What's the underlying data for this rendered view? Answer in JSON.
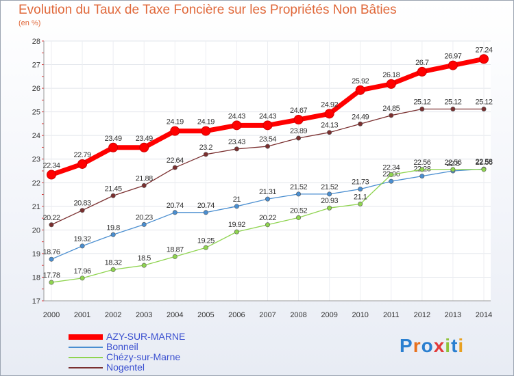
{
  "chart_data": {
    "type": "line",
    "title": "Evolution du Taux de Taxe Foncière sur les Propriétés Non Bâties",
    "ylabel": "(en %)",
    "xlabel": "",
    "ylim": [
      17,
      28
    ],
    "yticks": [
      "17",
      "18",
      "19",
      "20",
      "21",
      "22",
      "23",
      "24",
      "25",
      "26",
      "27",
      "28"
    ],
    "categories": [
      "2000",
      "2001",
      "2002",
      "2003",
      "2004",
      "2005",
      "2006",
      "2007",
      "2008",
      "2009",
      "2010",
      "2011",
      "2012",
      "2013",
      "2014"
    ],
    "series": [
      {
        "name": "Nogentel",
        "color": "#7a2f2f",
        "values": [
          20.22,
          20.83,
          21.45,
          21.88,
          22.64,
          23.2,
          23.43,
          23.54,
          23.89,
          24.13,
          24.49,
          24.85,
          25.12,
          25.12,
          25.12
        ],
        "labels": [
          "20.22",
          "20.83",
          "21.45",
          "21.88",
          "22.64",
          "23.2",
          "23.43",
          "23.54",
          "23.89",
          "24.13",
          "24.49",
          "24.85",
          "25.12",
          "25.12",
          "25.12"
        ]
      },
      {
        "name": "Bonneil",
        "color": "#4a8ed0",
        "values": [
          18.76,
          19.32,
          19.8,
          20.23,
          20.74,
          20.74,
          21,
          21.31,
          21.52,
          21.52,
          21.73,
          22.06,
          22.28,
          22.5,
          22.58
        ],
        "labels": [
          "18.76",
          "19.32",
          "19.8",
          "20.23",
          "20.74",
          "20.74",
          "21",
          "21.31",
          "21.52",
          "21.52",
          "21.73",
          "22.06",
          "22.28",
          "22.5",
          "22.58"
        ]
      },
      {
        "name": "Chézy-sur-Marne",
        "color": "#8fd450",
        "values": [
          17.78,
          17.96,
          18.32,
          18.5,
          18.87,
          19.25,
          19.92,
          20.22,
          20.52,
          20.93,
          21.1,
          22.34,
          22.56,
          22.56,
          22.56
        ],
        "labels": [
          "17.78",
          "17.96",
          "18.32",
          "18.5",
          "18.87",
          "19.25",
          "19.92",
          "20.22",
          "20.52",
          "20.93",
          "21.1",
          "22.34",
          "22.56",
          "22.56",
          "22.56"
        ]
      },
      {
        "name": "AZY-SUR-MARNE",
        "color": "#ff0000",
        "values": [
          22.34,
          22.79,
          23.49,
          23.49,
          24.19,
          24.19,
          24.43,
          24.43,
          24.67,
          24.92,
          25.92,
          26.18,
          26.7,
          26.97,
          27.24
        ],
        "labels": [
          "22.34",
          "22.79",
          "23.49",
          "23.49",
          "24.19",
          "24.19",
          "24.43",
          "24.43",
          "24.67",
          "24.92",
          "25.92",
          "26.18",
          "26.7",
          "26.97",
          "27.24"
        ]
      }
    ],
    "legend": [
      "AZY-SUR-MARNE",
      "Bonneil",
      "Chézy-sur-Marne",
      "Nogentel"
    ],
    "legend_position": "bottom-left"
  },
  "logo": {
    "text": "Proxiti",
    "colors": [
      "#2a7fd0",
      "#e8701c",
      "#2a7fd0",
      "#e23a3a",
      "#8fc23a",
      "#2a7fd0",
      "#e8a020"
    ]
  }
}
